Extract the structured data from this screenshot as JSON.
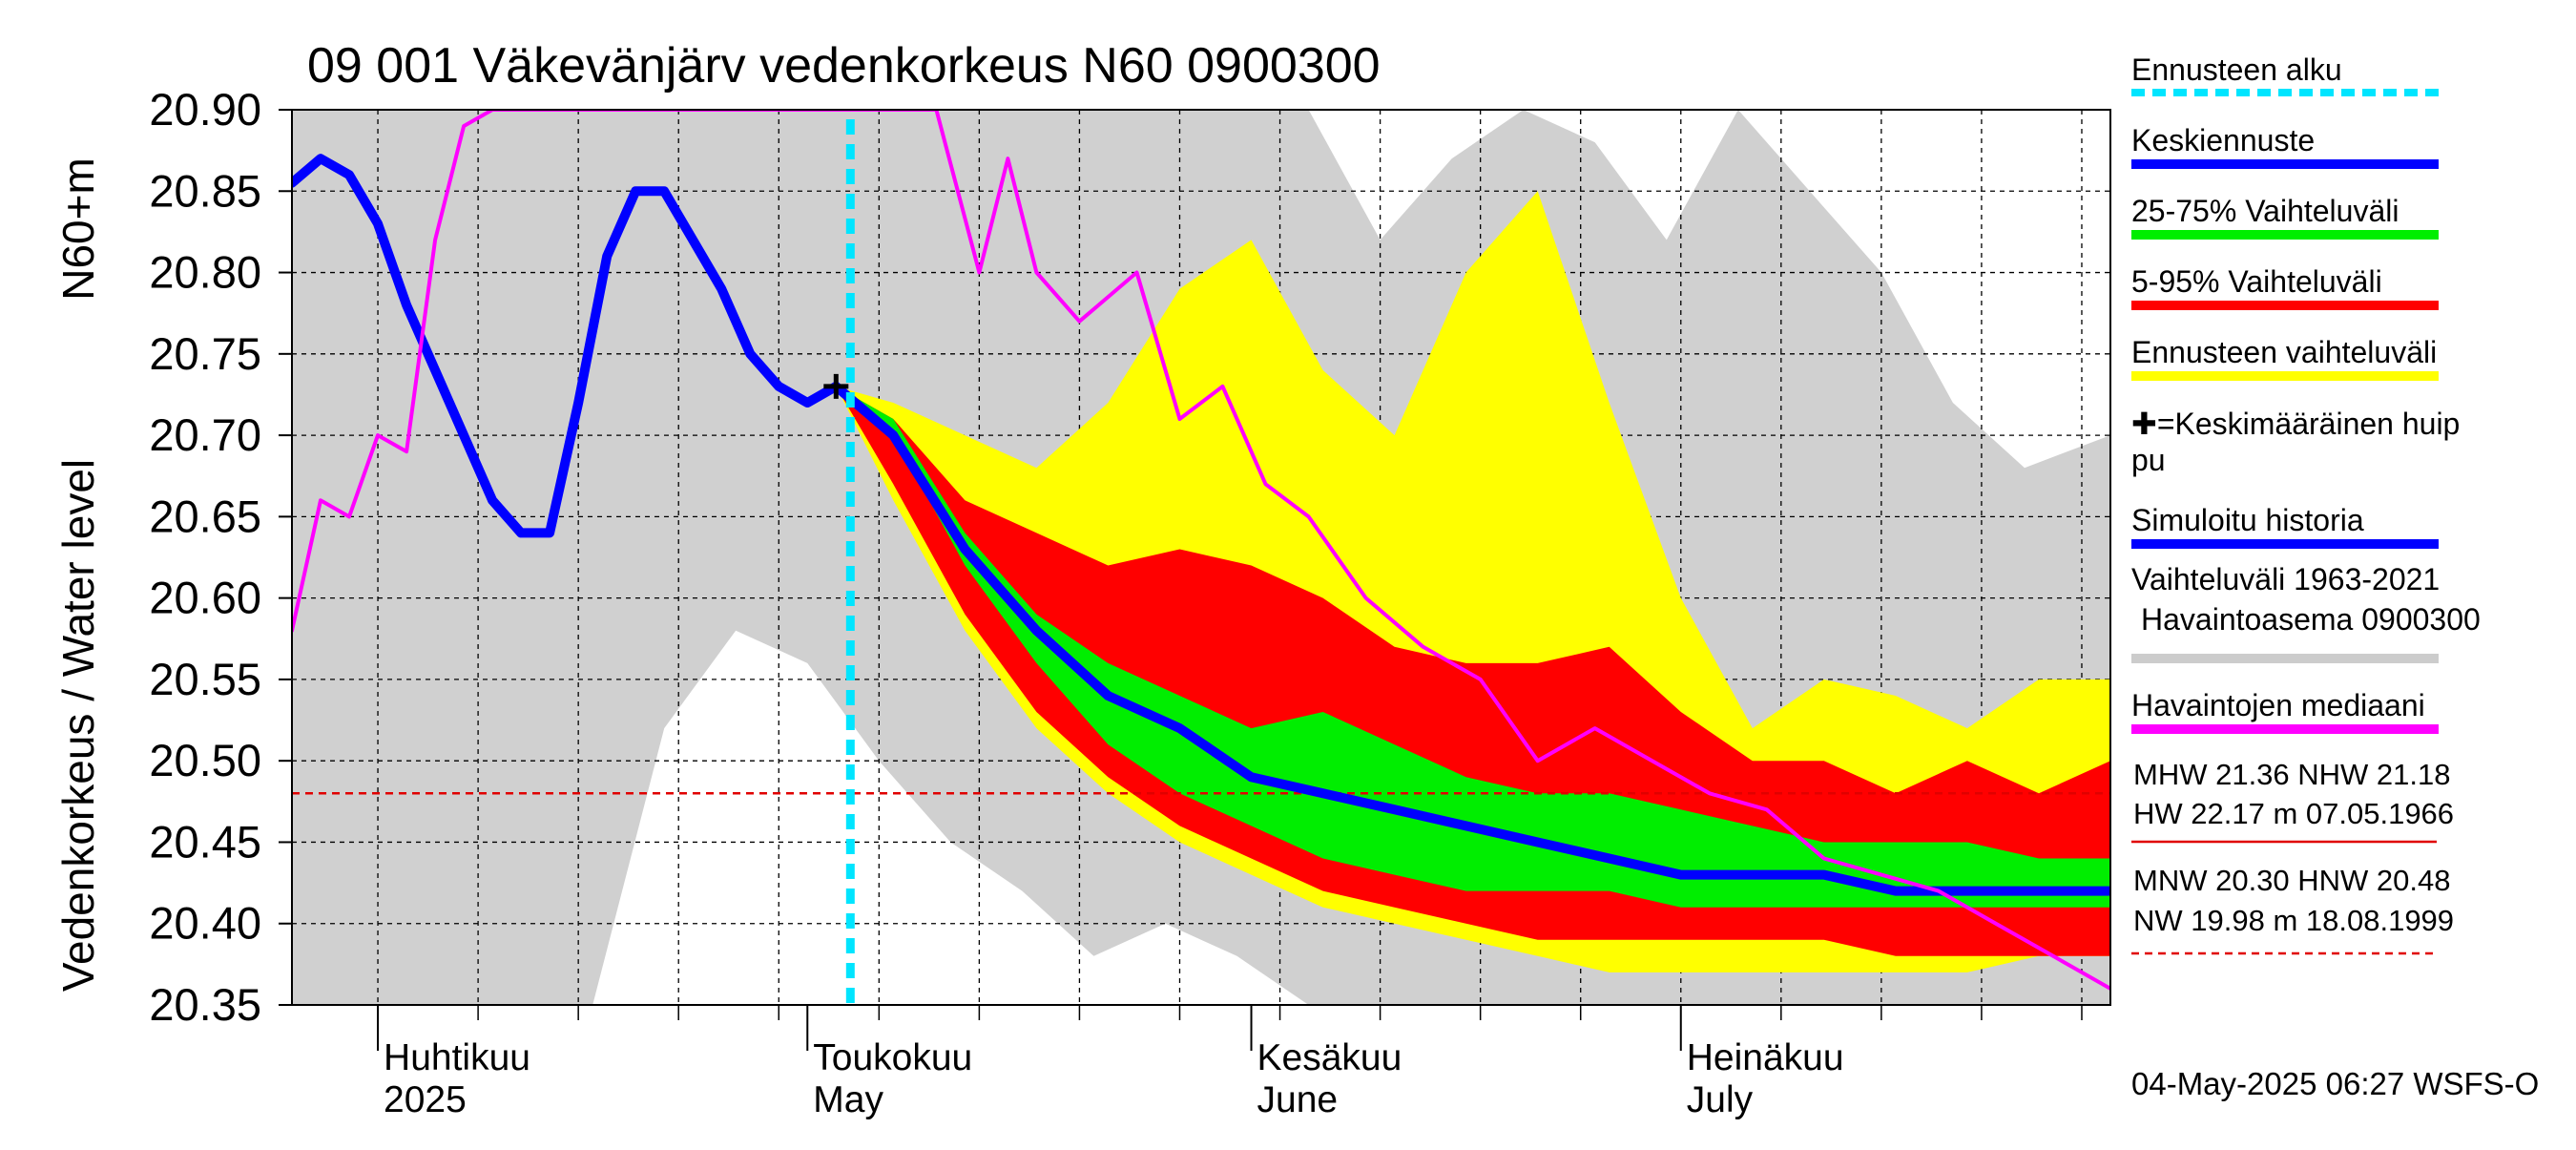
{
  "chart_data": {
    "type": "line",
    "title": "09 001 Väkevänjärv vedenkorkeus N60 0900300",
    "ylabel": "Vedenkorkeus / Water level",
    "ylabel_unit": "N60+m",
    "ylim": [
      20.35,
      20.9
    ],
    "yticks": [
      "20.35",
      "20.40",
      "20.45",
      "20.50",
      "20.55",
      "20.60",
      "20.65",
      "20.70",
      "20.75",
      "20.80",
      "20.85",
      "20.90"
    ],
    "x_range": [
      "2025-03-26",
      "2025-07-31"
    ],
    "x_month_labels": [
      {
        "date": "2025-04-01",
        "fi": "Huhtikuu",
        "en": "2025"
      },
      {
        "date": "2025-05-01",
        "fi": "Toukokuu",
        "en": "May"
      },
      {
        "date": "2025-06-01",
        "fi": "Kesäkuu",
        "en": "June"
      },
      {
        "date": "2025-07-01",
        "fi": "Heinäkuu",
        "en": "July"
      }
    ],
    "grid": true,
    "forecast_start": "2025-05-04",
    "mean_peak": {
      "date": "2025-05-03",
      "value": 20.73
    },
    "reference_line": {
      "value": 20.48,
      "color": "#e00000"
    },
    "historical_range": {
      "name": "Vaihteluväli 1963-2021 Havaintoasema 0900300",
      "color": "#d0d0d0",
      "x": [
        "2025-03-26",
        "2025-04-01",
        "2025-04-06",
        "2025-04-11",
        "2025-04-16",
        "2025-04-21",
        "2025-04-26",
        "2025-05-01",
        "2025-05-06",
        "2025-05-11",
        "2025-05-16",
        "2025-05-21",
        "2025-05-26",
        "2025-05-31",
        "2025-06-05",
        "2025-06-10",
        "2025-06-15",
        "2025-06-20",
        "2025-06-25",
        "2025-06-30",
        "2025-07-05",
        "2025-07-10",
        "2025-07-15",
        "2025-07-20",
        "2025-07-25",
        "2025-07-31"
      ],
      "lower": [
        20.35,
        20.35,
        20.35,
        20.35,
        20.35,
        20.52,
        20.58,
        20.56,
        20.5,
        20.45,
        20.42,
        20.38,
        20.4,
        20.38,
        20.35,
        20.35,
        20.35,
        20.35,
        20.35,
        20.35,
        20.35,
        20.35,
        20.35,
        20.35,
        20.35,
        20.35
      ],
      "upper": [
        20.9,
        20.9,
        20.9,
        20.9,
        20.9,
        20.9,
        20.9,
        20.9,
        20.9,
        20.9,
        20.9,
        20.9,
        20.9,
        20.9,
        20.9,
        20.82,
        20.87,
        20.9,
        20.88,
        20.82,
        20.9,
        20.85,
        20.8,
        20.72,
        20.68,
        20.7
      ]
    },
    "forecast_x": [
      "2025-05-03",
      "2025-05-07",
      "2025-05-12",
      "2025-05-17",
      "2025-05-22",
      "2025-05-27",
      "2025-06-01",
      "2025-06-06",
      "2025-06-11",
      "2025-06-16",
      "2025-06-21",
      "2025-06-26",
      "2025-07-01",
      "2025-07-06",
      "2025-07-11",
      "2025-07-16",
      "2025-07-21",
      "2025-07-26",
      "2025-07-31"
    ],
    "series": [
      {
        "name": "Ennusteen vaihteluväli",
        "type": "band",
        "color": "#ffff00",
        "lower": [
          20.73,
          20.66,
          20.58,
          20.52,
          20.48,
          20.45,
          20.43,
          20.41,
          20.4,
          20.39,
          20.38,
          20.37,
          20.37,
          20.37,
          20.37,
          20.37,
          20.37,
          20.38,
          20.38
        ],
        "upper": [
          20.73,
          20.72,
          20.7,
          20.68,
          20.72,
          20.79,
          20.82,
          20.74,
          20.7,
          20.8,
          20.85,
          20.72,
          20.6,
          20.52,
          20.55,
          20.54,
          20.52,
          20.55,
          20.55
        ]
      },
      {
        "name": "5-95% Vaihteluväli",
        "type": "band",
        "color": "#ff0000",
        "lower": [
          20.73,
          20.67,
          20.59,
          20.53,
          20.49,
          20.46,
          20.44,
          20.42,
          20.41,
          20.4,
          20.39,
          20.39,
          20.39,
          20.39,
          20.39,
          20.38,
          20.38,
          20.38,
          20.38
        ],
        "upper": [
          20.73,
          20.71,
          20.66,
          20.64,
          20.62,
          20.63,
          20.62,
          20.6,
          20.57,
          20.56,
          20.56,
          20.57,
          20.53,
          20.5,
          20.5,
          20.48,
          20.5,
          20.48,
          20.5
        ]
      },
      {
        "name": "25-75% Vaihteluväli",
        "type": "band",
        "color": "#00ee00",
        "lower": [
          20.73,
          20.7,
          20.62,
          20.56,
          20.51,
          20.48,
          20.46,
          20.44,
          20.43,
          20.42,
          20.42,
          20.42,
          20.41,
          20.41,
          20.41,
          20.41,
          20.41,
          20.41,
          20.41
        ],
        "upper": [
          20.73,
          20.71,
          20.64,
          20.59,
          20.56,
          20.54,
          20.52,
          20.53,
          20.51,
          20.49,
          20.48,
          20.48,
          20.47,
          20.46,
          20.45,
          20.45,
          20.45,
          20.44,
          20.44
        ]
      },
      {
        "name": "Keskiennuste",
        "type": "line",
        "color": "#0000ff",
        "values": [
          20.73,
          20.7,
          20.63,
          20.58,
          20.54,
          20.52,
          20.49,
          20.48,
          20.47,
          20.46,
          20.45,
          20.44,
          20.43,
          20.43,
          20.43,
          20.42,
          20.42,
          20.42,
          20.42
        ]
      },
      {
        "name": "Simuloitu historia",
        "type": "line",
        "color": "#0000ff",
        "x": [
          "2025-03-26",
          "2025-03-28",
          "2025-03-30",
          "2025-04-01",
          "2025-04-03",
          "2025-04-05",
          "2025-04-07",
          "2025-04-09",
          "2025-04-11",
          "2025-04-13",
          "2025-04-15",
          "2025-04-17",
          "2025-04-19",
          "2025-04-21",
          "2025-04-23",
          "2025-04-25",
          "2025-04-27",
          "2025-04-29",
          "2025-05-01",
          "2025-05-03"
        ],
        "values": [
          20.855,
          20.87,
          20.86,
          20.83,
          20.78,
          20.74,
          20.7,
          20.66,
          20.64,
          20.64,
          20.72,
          20.81,
          20.85,
          20.85,
          20.82,
          20.79,
          20.75,
          20.73,
          20.72,
          20.73
        ]
      },
      {
        "name": "Havaintojen mediaani",
        "type": "line",
        "color": "#ff00ff",
        "x": [
          "2025-03-26",
          "2025-03-28",
          "2025-03-30",
          "2025-04-01",
          "2025-04-03",
          "2025-04-05",
          "2025-04-07",
          "2025-04-09",
          "2025-04-11",
          "2025-04-13",
          "2025-04-15",
          "2025-05-10",
          "2025-05-13",
          "2025-05-15",
          "2025-05-17",
          "2025-05-20",
          "2025-05-24",
          "2025-05-27",
          "2025-05-30",
          "2025-06-02",
          "2025-06-05",
          "2025-06-09",
          "2025-06-13",
          "2025-06-17",
          "2025-06-21",
          "2025-06-25",
          "2025-06-29",
          "2025-07-03",
          "2025-07-07",
          "2025-07-11",
          "2025-07-15",
          "2025-07-19",
          "2025-07-23",
          "2025-07-27",
          "2025-07-31"
        ],
        "values": [
          20.58,
          20.66,
          20.65,
          20.7,
          20.69,
          20.82,
          20.89,
          20.9,
          20.9,
          20.9,
          20.9,
          20.9,
          20.8,
          20.87,
          20.8,
          20.77,
          20.8,
          20.71,
          20.73,
          20.67,
          20.65,
          20.6,
          20.57,
          20.55,
          20.5,
          20.52,
          20.5,
          20.48,
          20.47,
          20.44,
          20.43,
          20.42,
          20.4,
          20.38,
          20.36
        ]
      }
    ],
    "legend_placement": "right"
  },
  "legend": [
    {
      "label": "Ennusteen alku",
      "color": "#00e5ff",
      "style": "dashed"
    },
    {
      "label": "Keskiennuste",
      "color": "#0000ff",
      "style": "solid"
    },
    {
      "label": "25-75% Vaihteluväli",
      "color": "#00ee00",
      "style": "solid"
    },
    {
      "label": "5-95% Vaihteluväli",
      "color": "#ff0000",
      "style": "solid"
    },
    {
      "label": "Ennusteen vaihteluväli",
      "color": "#ffff00",
      "style": "solid"
    },
    {
      "label": "✚=Keskimääräinen huippu",
      "color": "#000000",
      "style": "none"
    },
    {
      "label": "Simuloitu historia",
      "color": "#0000ff",
      "style": "solid"
    },
    {
      "label": "Vaihteluväli 1963-2021 Havaintoasema 0900300",
      "color": "#cccccc",
      "style": "solid"
    },
    {
      "label": "Havaintojen mediaani",
      "color": "#ff00ff",
      "style": "solid"
    }
  ],
  "stats": {
    "line1": "MHW  21.36 NHW  21.18",
    "line2": "HW  22.17 m 07.05.1966",
    "line3": "MNW  20.30 HNW  20.48",
    "line4": "NW  19.98 m 18.08.1999"
  },
  "footer": "04-May-2025 06:27 WSFS-O"
}
